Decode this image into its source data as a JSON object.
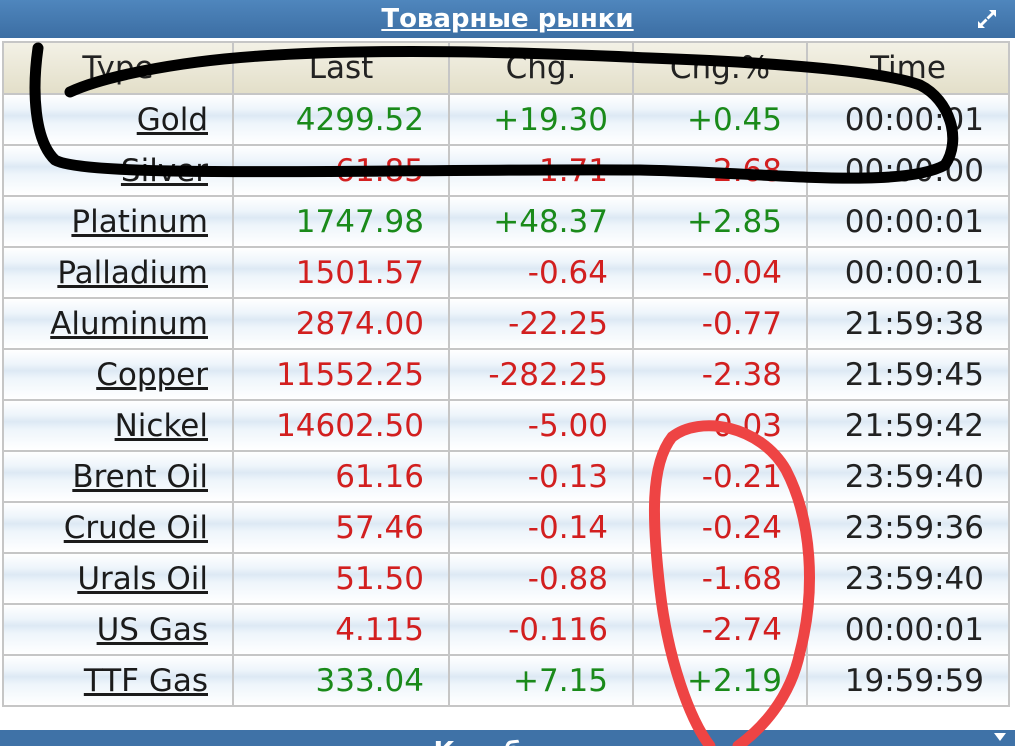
{
  "header": {
    "title": "Товарные рынки"
  },
  "columns": [
    "Type",
    "Last",
    "Chg.",
    "Chg.%",
    "Time"
  ],
  "rows": [
    {
      "type": "Gold",
      "last": "4299.52",
      "chg": "+19.30",
      "pct": "+0.45",
      "time": "00:00:01",
      "dir": "up"
    },
    {
      "type": "Silver",
      "last": "61.85",
      "chg": "-1.71",
      "pct": "-2.68",
      "time": "00:00:00",
      "dir": "down"
    },
    {
      "type": "Platinum",
      "last": "1747.98",
      "chg": "+48.37",
      "pct": "+2.85",
      "time": "00:00:01",
      "dir": "up"
    },
    {
      "type": "Palladium",
      "last": "1501.57",
      "chg": "-0.64",
      "pct": "-0.04",
      "time": "00:00:01",
      "dir": "down"
    },
    {
      "type": "Aluminum",
      "last": "2874.00",
      "chg": "-22.25",
      "pct": "-0.77",
      "time": "21:59:38",
      "dir": "down"
    },
    {
      "type": "Copper",
      "last": "11552.25",
      "chg": "-282.25",
      "pct": "-2.38",
      "time": "21:59:45",
      "dir": "down"
    },
    {
      "type": "Nickel",
      "last": "14602.50",
      "chg": "-5.00",
      "pct": "-0.03",
      "time": "21:59:42",
      "dir": "down"
    },
    {
      "type": "Brent Oil",
      "last": "61.16",
      "chg": "-0.13",
      "pct": "-0.21",
      "time": "23:59:40",
      "dir": "down"
    },
    {
      "type": "Crude Oil",
      "last": "57.46",
      "chg": "-0.14",
      "pct": "-0.24",
      "time": "23:59:36",
      "dir": "down"
    },
    {
      "type": "Urals Oil",
      "last": "51.50",
      "chg": "-0.88",
      "pct": "-1.68",
      "time": "23:59:40",
      "dir": "down"
    },
    {
      "type": "US Gas",
      "last": "4.115",
      "chg": "-0.116",
      "pct": "-2.74",
      "time": "00:00:01",
      "dir": "down"
    },
    {
      "type": "TTF Gas",
      "last": "333.04",
      "chg": "+7.15",
      "pct": "+2.19",
      "time": "19:59:59",
      "dir": "up"
    }
  ],
  "next_section": {
    "title": "К.....б......"
  },
  "colors": {
    "up": "#1a8a1a",
    "down": "#d21f1f",
    "header_bar": "#4a7fb6",
    "annotation_black": "#000000",
    "annotation_red": "#ee4444"
  },
  "icons": {
    "expand": "expand-arrows-icon",
    "collapse": "arrow-down-icon"
  }
}
